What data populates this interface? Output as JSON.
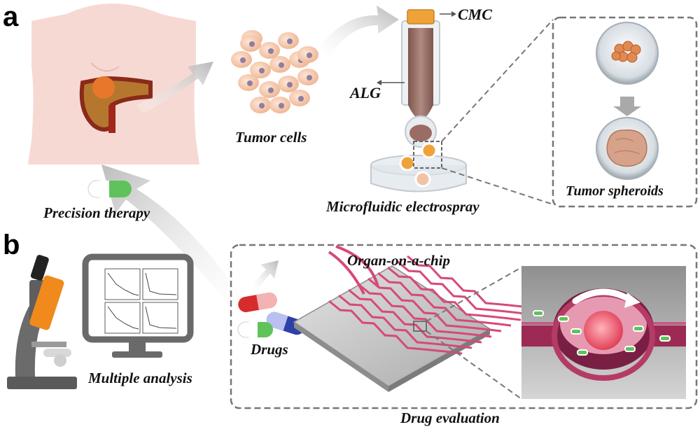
{
  "panels": {
    "a": "a",
    "b": "b"
  },
  "labels": {
    "cmc": "CMC",
    "alg": "ALG",
    "tumor_cells": "Tumor cells",
    "precision_therapy": "Precision therapy",
    "microfluidic_electrospray": "Microfluidic electrospray",
    "tumor_spheroids": "Tumor spheroids",
    "organ_on_a_chip": "Organ-on-a-chip",
    "drugs": "Drugs",
    "multiple_analysis": "Multiple analysis",
    "drug_evaluation": "Drug evaluation"
  },
  "colors": {
    "body_skin": "#f7d9d4",
    "pancreas": "#c97a2a",
    "tumor": "#e8772b",
    "cell": "#f3c3a6",
    "cell_nucleus": "#8c7fa0",
    "syringe_fluid": "#9a6c63",
    "cmc_cap": "#f0a23a",
    "chip_channel": "#d8487a",
    "arrow_gray": "#c9c9c9",
    "dashed_border": "#777777",
    "microscope_orange": "#f08a1c",
    "capsule_green": "#5fc25a",
    "capsule_red": "#d62c2c",
    "capsule_blue": "#2f3fa8"
  },
  "icons": [
    "torso-illustration",
    "pancreas-tumor-icon",
    "tumor-cells-cluster",
    "electrospray-syringe",
    "collection-dish",
    "spheroid-well-icon",
    "microscope-icon",
    "monitor-icon",
    "capsule-icon",
    "organ-chip-icon",
    "chip-chamber-zoom"
  ]
}
